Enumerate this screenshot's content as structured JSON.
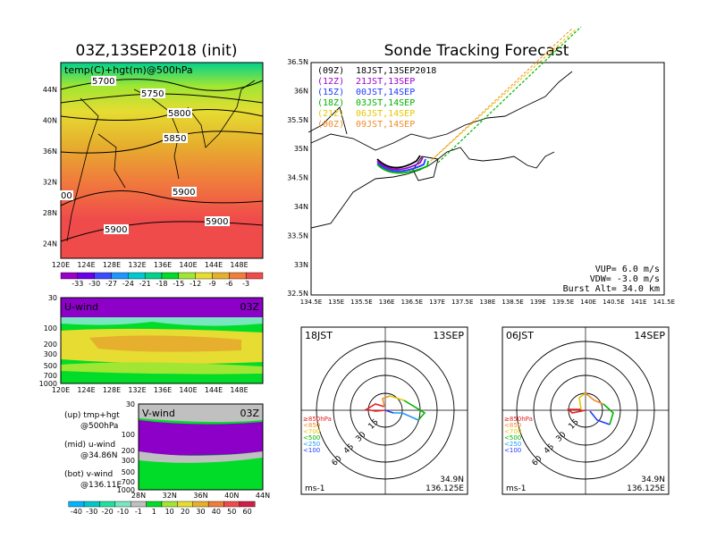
{
  "left_title": "03Z,13SEP2018 (init)",
  "right_title": "Sonde Tracking Forecast",
  "temp_panel": {
    "label": "temp(C)+hgt(m)@500hPa",
    "lat_ticks": [
      "44N",
      "40N",
      "36N",
      "32N",
      "28N",
      "24N"
    ],
    "lon_ticks": [
      "120E",
      "124E",
      "128E",
      "132E",
      "136E",
      "140E",
      "144E",
      "148E"
    ],
    "contour_labels": [
      "5700",
      "5750",
      "5800",
      "5850",
      "5900",
      "5900",
      "5900",
      "00"
    ],
    "colorbar_ticks": [
      "-33",
      "-30",
      "-27",
      "-24",
      "-21",
      "-18",
      "-15",
      "-12",
      "-9",
      "-6",
      "-3"
    ],
    "colorbar_colors": [
      "#9a00c8",
      "#6a00e8",
      "#3c4bff",
      "#1e96ff",
      "#00c8d2",
      "#00d28c",
      "#00dc28",
      "#a0e632",
      "#e6dc32",
      "#e6af2d",
      "#f07d3c",
      "#f04b4b"
    ]
  },
  "uwind_panel": {
    "label": "U-wind",
    "time": "03Z",
    "p_ticks": [
      "30",
      "100",
      "200",
      "300",
      "500",
      "700",
      "1000"
    ],
    "lon_ticks": [
      "120E",
      "124E",
      "128E",
      "132E",
      "136E",
      "140E",
      "144E",
      "148E"
    ]
  },
  "vwind_panel": {
    "label": "V-wind",
    "time": "03Z",
    "p_ticks": [
      "30",
      "100",
      "200",
      "300",
      "500",
      "700",
      "1000"
    ],
    "lat_ticks": [
      "28N",
      "32N",
      "36N",
      "40N",
      "44N"
    ]
  },
  "wind_colorbar": {
    "ticks": [
      "-40",
      "-30",
      "-20",
      "-10",
      "-1",
      "1",
      "10",
      "20",
      "30",
      "40",
      "50",
      "60"
    ],
    "colors": [
      "#00b4ff",
      "#00c8c8",
      "#1ee1a0",
      "#78e6be",
      "#c0c0c0",
      "#00dc28",
      "#a0e632",
      "#e6dc32",
      "#e6af2d",
      "#f07d3c",
      "#f04b4b",
      "#d21e46"
    ]
  },
  "notes": {
    "up": "(up) tmp+hgt",
    "up2": "@500hPa",
    "mid": "(mid) u-wind",
    "mid2": "@34.86N",
    "bot": "(bot) v-wind",
    "bot2": "@136.11E"
  },
  "track_map": {
    "legend": [
      {
        "tag": "(09Z)",
        "text": "18JST,13SEP2018",
        "color": "#000000"
      },
      {
        "tag": "(12Z)",
        "text": "21JST,13SEP",
        "color": "#a000c8"
      },
      {
        "tag": "(15Z)",
        "text": "00JST,14SEP",
        "color": "#1e3cff"
      },
      {
        "tag": "(18Z)",
        "text": "03JST,14SEP",
        "color": "#00b400"
      },
      {
        "tag": "(21Z)",
        "text": "06JST,14SEP",
        "color": "#e6c800"
      },
      {
        "tag": "(00Z)",
        "text": "09JST,14SEP",
        "color": "#f08c28"
      }
    ],
    "lat_ticks": [
      "36.5N",
      "36N",
      "35.5N",
      "35N",
      "34.5N",
      "34N",
      "33.5N",
      "33N",
      "32.5N"
    ],
    "lon_ticks": [
      "134.5E",
      "135E",
      "135.5E",
      "136E",
      "136.5E",
      "137E",
      "137.5E",
      "138E",
      "138.5E",
      "139E",
      "139.5E",
      "140E",
      "140.5E",
      "141E",
      "141.5E"
    ],
    "vup": "VUP=  6.0 m/s",
    "vdw": "VDW= -3.0 m/s",
    "burst": "Burst Alt= 34.0 km"
  },
  "hodo_left": {
    "time": "18JST",
    "date": "13SEP",
    "rings": [
      "15",
      "30",
      "45",
      "60"
    ],
    "levels": [
      "≥850hPa",
      "<850",
      "<700",
      "<500",
      "<250",
      "<100"
    ],
    "level_colors": [
      "#e61e1e",
      "#f08c28",
      "#e6c800",
      "#00b400",
      "#1e96ff",
      "#1e3cff"
    ],
    "lat": "34.9N",
    "lon": "136.125E",
    "unit": "ms-1"
  },
  "hodo_right": {
    "time": "06JST",
    "date": "14SEP",
    "rings": [
      "15",
      "30",
      "45",
      "60"
    ],
    "levels": [
      "≥850hPa",
      "<850",
      "<700",
      "<500",
      "<250",
      "<100"
    ],
    "level_colors": [
      "#e61e1e",
      "#f08c28",
      "#e6c800",
      "#00b400",
      "#1e96ff",
      "#1e3cff"
    ],
    "lat": "34.9N",
    "lon": "136.125E",
    "unit": "ms-1"
  }
}
